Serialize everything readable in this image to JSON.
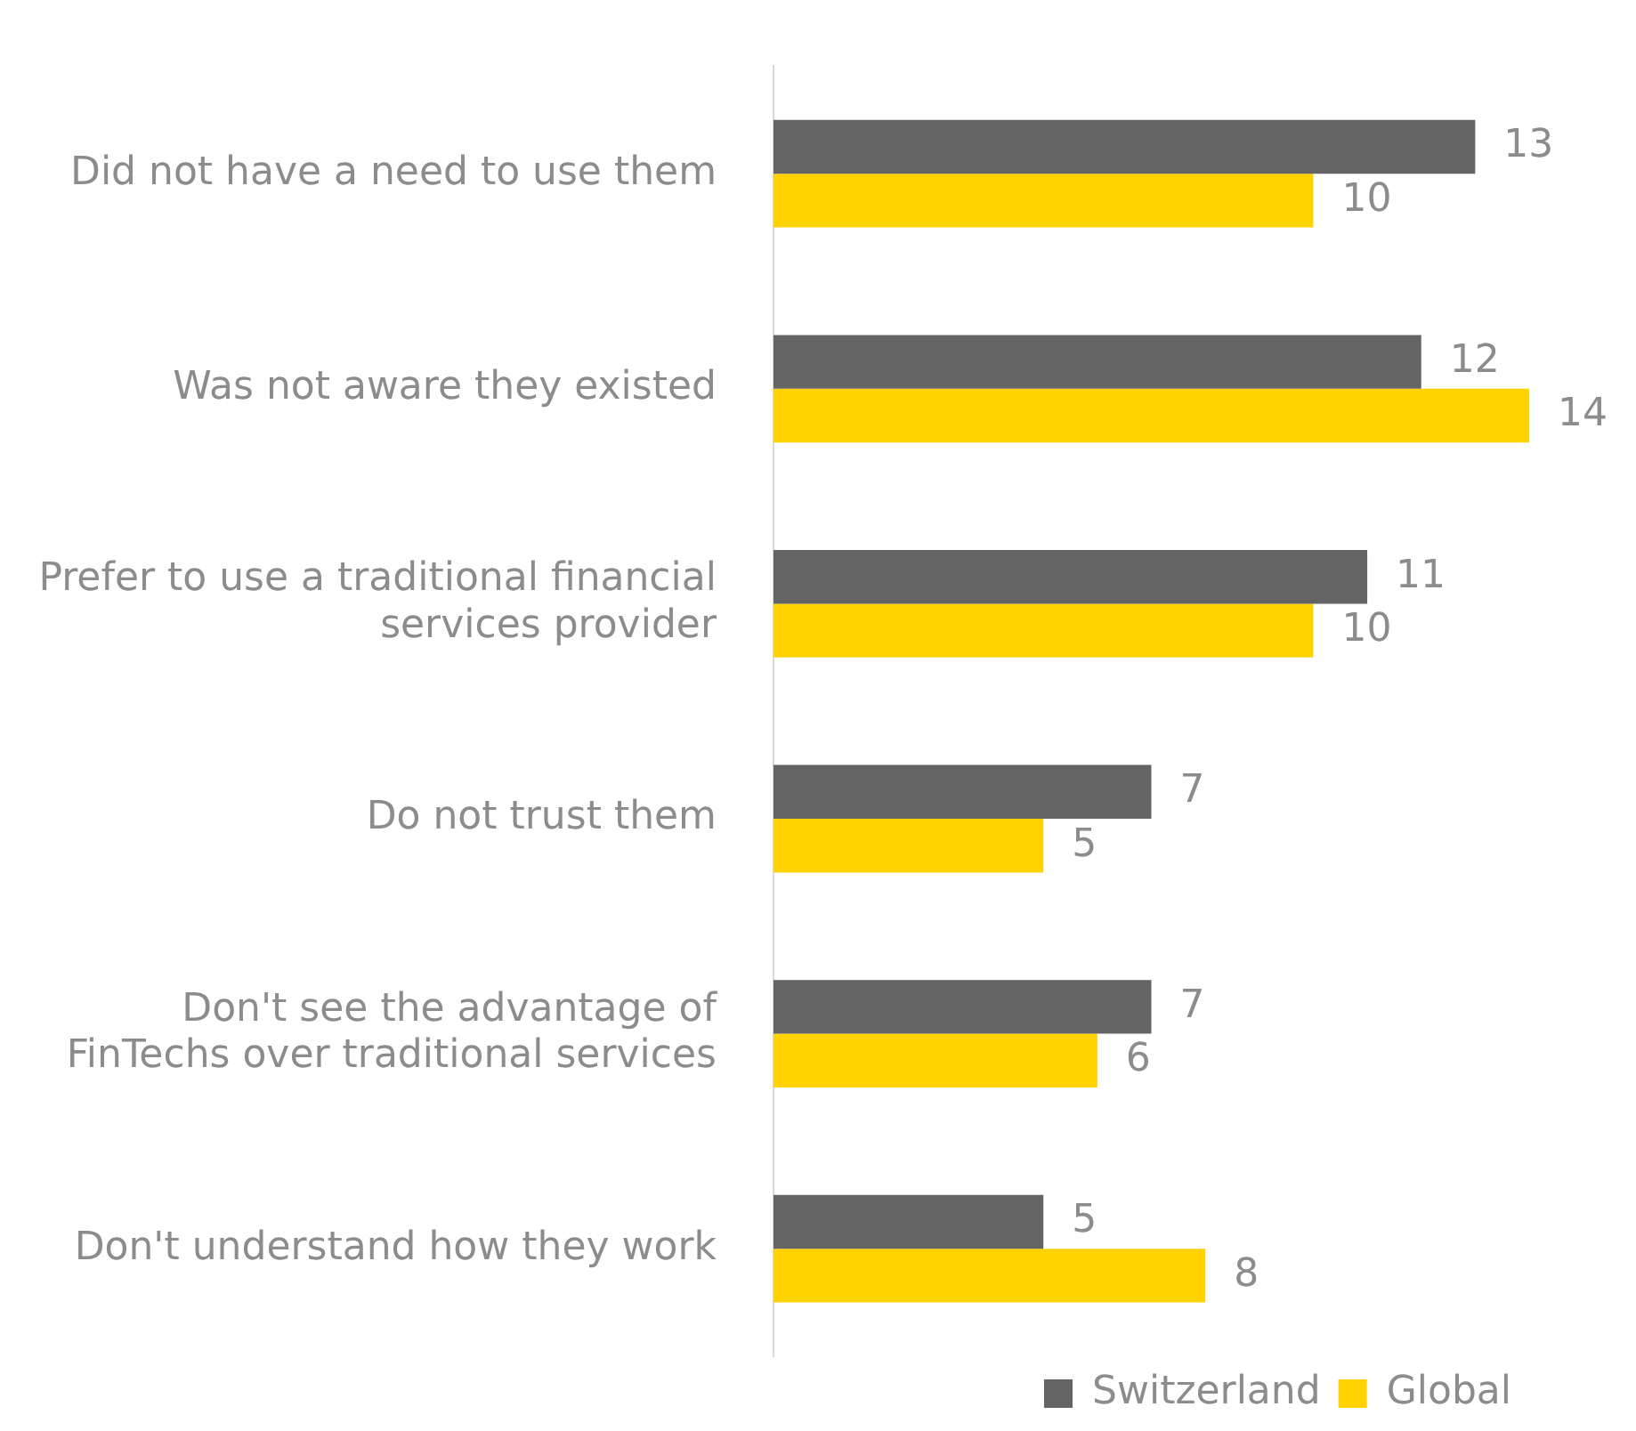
{
  "chart_data": {
    "type": "bar",
    "orientation": "horizontal",
    "categories": [
      "Did not have a need to use them",
      "Was not aware they existed",
      "Prefer to use a traditional financial\nservices provider",
      "Do not trust them",
      "Don't see the advantage of\nFinTechs over traditional services",
      "Don't understand how they work"
    ],
    "series": [
      {
        "name": "Switzerland",
        "color": "#646464",
        "values": [
          13,
          12,
          11,
          7,
          7,
          5
        ]
      },
      {
        "name": "Global",
        "color": "#ffd200",
        "values": [
          10,
          14,
          10,
          5,
          6,
          8
        ]
      }
    ],
    "data_labels": true,
    "legend": "bottom right"
  }
}
